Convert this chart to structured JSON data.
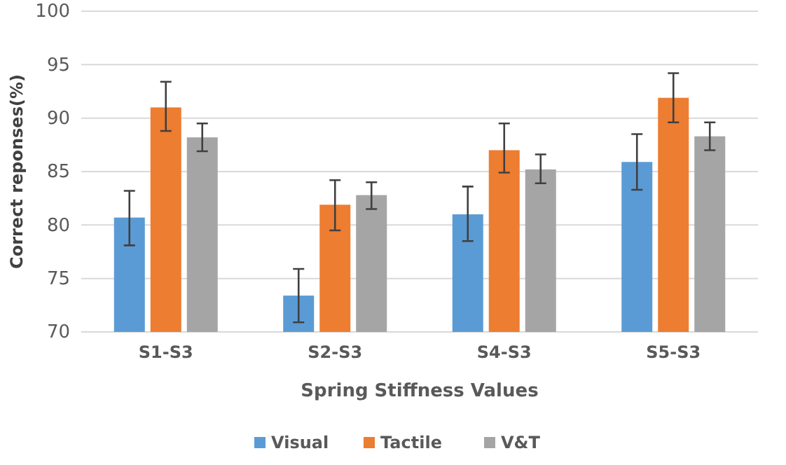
{
  "chart_data": {
    "type": "bar",
    "xlabel": "Spring Stiffness Values",
    "ylabel": "Correct reponses(%)",
    "categories": [
      "S1-S3",
      "S2-S3",
      "S4-S3",
      "S5-S3"
    ],
    "series": [
      {
        "name": "Visual",
        "color": "#5b9bd5",
        "values": [
          80.7,
          73.4,
          81.0,
          85.9
        ],
        "errors": [
          [
            78.1,
            83.2
          ],
          [
            70.9,
            75.9
          ],
          [
            78.5,
            83.6
          ],
          [
            83.3,
            88.5
          ]
        ]
      },
      {
        "name": "Tactile",
        "color": "#ed7d31",
        "values": [
          91.0,
          81.9,
          87.0,
          91.9
        ],
        "errors": [
          [
            88.8,
            93.4
          ],
          [
            79.5,
            84.2
          ],
          [
            84.9,
            89.5
          ],
          [
            89.6,
            94.2
          ]
        ]
      },
      {
        "name": "V&T",
        "color": "#a5a5a5",
        "values": [
          88.2,
          82.8,
          85.2,
          88.3
        ],
        "errors": [
          [
            86.9,
            89.5
          ],
          [
            81.5,
            84.0
          ],
          [
            83.9,
            86.6
          ],
          [
            87.0,
            89.6
          ]
        ]
      }
    ],
    "ylim": [
      70,
      100
    ],
    "yticks": [
      70,
      75,
      80,
      85,
      90,
      95,
      100
    ],
    "grid": "y",
    "legend": "bottom"
  }
}
